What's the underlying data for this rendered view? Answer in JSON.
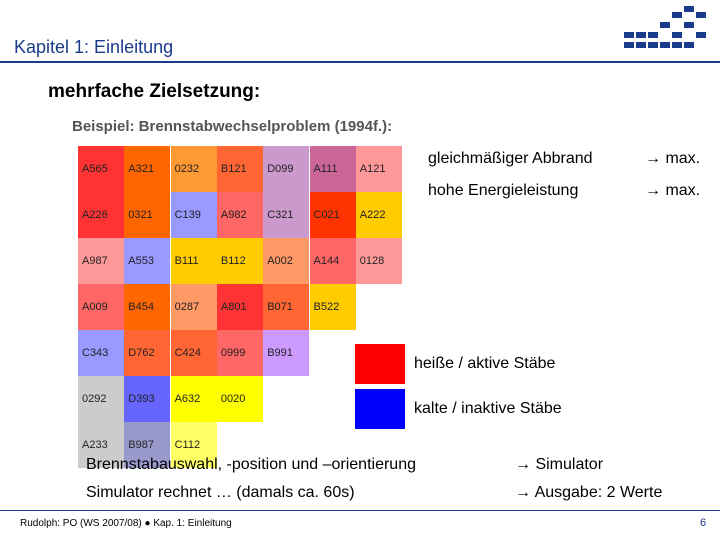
{
  "header": {
    "title": "Kapitel 1: Einleitung"
  },
  "heading": "mehrfache Zielsetzung:",
  "subheading": "Beispiel: Brennstabwechselproblem (1994f.):",
  "grid": [
    [
      {
        "label": "A565",
        "color": "#ff3333"
      },
      {
        "label": "A321",
        "color": "#ff6600"
      },
      {
        "label": "0232",
        "color": "#ff9933"
      },
      {
        "label": "B121",
        "color": "#ff6633"
      },
      {
        "label": "D099",
        "color": "#cc99cc"
      },
      {
        "label": "A111",
        "color": "#cc6699"
      },
      {
        "label": "A121",
        "color": "#ff9999"
      }
    ],
    [
      {
        "label": "A226",
        "color": "#ff3333"
      },
      {
        "label": "0321",
        "color": "#ff6600"
      },
      {
        "label": "C139",
        "color": "#9999ff"
      },
      {
        "label": "A982",
        "color": "#ff6666"
      },
      {
        "label": "C321",
        "color": "#cc99cc"
      },
      {
        "label": "C021",
        "color": "#ff3300"
      },
      {
        "label": "A222",
        "color": "#ffcc00"
      }
    ],
    [
      {
        "label": "A987",
        "color": "#ff9999"
      },
      {
        "label": "A553",
        "color": "#9999ff"
      },
      {
        "label": "B111",
        "color": "#ffcc00"
      },
      {
        "label": "B112",
        "color": "#ffcc00"
      },
      {
        "label": "A002",
        "color": "#ff9966"
      },
      {
        "label": "A144",
        "color": "#ff6666"
      },
      {
        "label": "0128",
        "color": "#ff9999"
      }
    ],
    [
      {
        "label": "A009",
        "color": "#ff6666"
      },
      {
        "label": "B454",
        "color": "#ff6600"
      },
      {
        "label": "0287",
        "color": "#ff9966"
      },
      {
        "label": "A801",
        "color": "#ff3333"
      },
      {
        "label": "B071",
        "color": "#ff6633"
      },
      {
        "label": "B522",
        "color": "#ffcc00"
      }
    ],
    [
      {
        "label": "C343",
        "color": "#9999ff"
      },
      {
        "label": "D762",
        "color": "#ff6633"
      },
      {
        "label": "C424",
        "color": "#ff6633"
      },
      {
        "label": "0999",
        "color": "#ff6666"
      },
      {
        "label": "B991",
        "color": "#cc99ff"
      }
    ],
    [
      {
        "label": "0292",
        "color": "#cccccc"
      },
      {
        "label": "D393",
        "color": "#6666ff"
      },
      {
        "label": "A632",
        "color": "#ffff00"
      },
      {
        "label": "0020",
        "color": "#ffff00"
      }
    ],
    [
      {
        "label": "A233",
        "color": "#cccccc"
      },
      {
        "label": "B987",
        "color": "#9999cc"
      },
      {
        "label": "C112",
        "color": "#ffff66"
      }
    ]
  ],
  "goals": [
    {
      "text": "gleichmäßiger Abbrand",
      "target": "→ max."
    },
    {
      "text": "hohe Energieleistung",
      "target": "→ max."
    }
  ],
  "legend": [
    {
      "label": "heiße / aktive Stäbe",
      "color": "#ff0000"
    },
    {
      "label": "kalte / inaktive Stäbe",
      "color": "#0000ff"
    }
  ],
  "steps": [
    {
      "text": "Brennstabauswahl, -position und –orientierung",
      "result": "→ Simulator"
    },
    {
      "text": "Simulator rechnet … (damals ca. 60s)",
      "result": "→ Ausgabe: 2 Werte"
    }
  ],
  "footer": {
    "text": "Rudolph: PO (WS 2007/08) ● Kap. 1: Einleitung",
    "page": "6"
  }
}
